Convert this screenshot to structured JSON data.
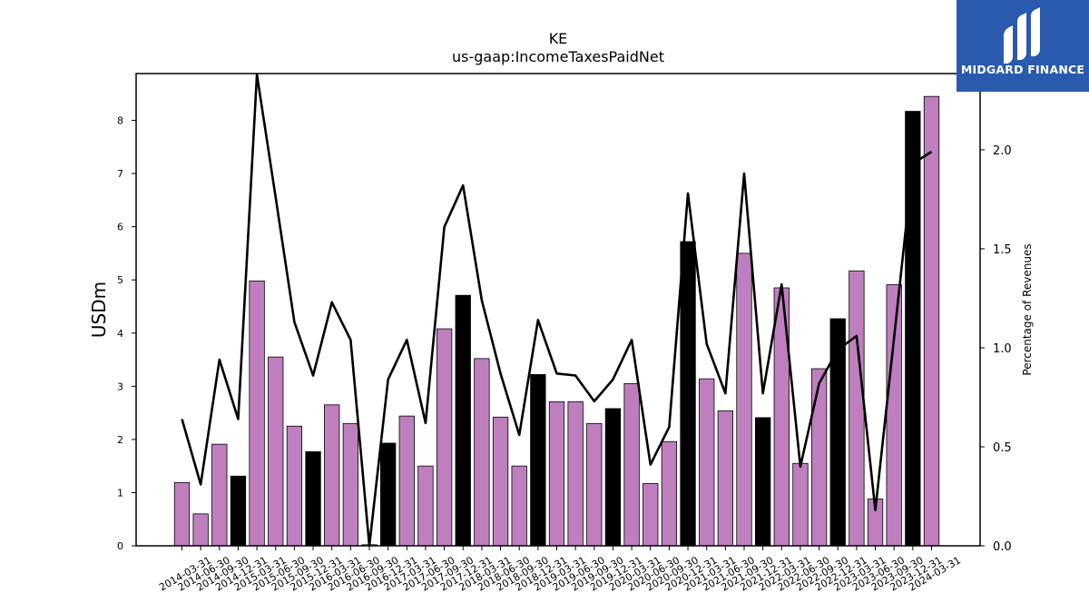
{
  "chart_data": {
    "type": "bar",
    "title": "KE",
    "subtitle": "us-gaap:IncomeTaxesPaidNet",
    "ylabel": "USDm",
    "y2label": "Percentage of Revenues",
    "ylim": [
      0,
      8.88
    ],
    "y2lim": [
      0,
      2.385
    ],
    "yticks": [
      0,
      1,
      2,
      3,
      4,
      5,
      6,
      7,
      8
    ],
    "y2ticks": [
      "0.0",
      "0.5",
      "1.0",
      "1.5",
      "2.0"
    ],
    "colors": {
      "quarter": "#bf7fbf",
      "q4": "#000000",
      "line": "#000000",
      "edge": "#000000"
    },
    "categories": [
      "2014-03-31",
      "2014-06-30",
      "2014-09-30",
      "2014-12-31",
      "2015-03-31",
      "2015-06-30",
      "2015-09-30",
      "2015-12-31",
      "2016-03-31",
      "2016-06-30",
      "2016-09-30",
      "2016-12-31",
      "2017-03-31",
      "2017-06-30",
      "2017-09-30",
      "2017-12-31",
      "2018-03-31",
      "2018-06-30",
      "2018-09-30",
      "2018-12-31",
      "2019-03-31",
      "2019-06-30",
      "2019-09-30",
      "2019-12-31",
      "2020-03-31",
      "2020-06-30",
      "2020-09-30",
      "2020-12-31",
      "2021-03-31",
      "2021-06-30",
      "2021-09-30",
      "2021-12-31",
      "2022-03-31",
      "2022-06-30",
      "2022-09-30",
      "2022-12-31",
      "2023-03-31",
      "2023-06-30",
      "2023-09-30",
      "2023-12-31",
      "2024-03-31"
    ],
    "series": [
      {
        "kind": "bar",
        "values": [
          1.19,
          0.6,
          1.91,
          1.31,
          4.98,
          3.55,
          2.25,
          1.77,
          2.65,
          2.3,
          0.02,
          1.93,
          2.44,
          1.5,
          4.08,
          4.71,
          3.52,
          2.42,
          1.5,
          3.22,
          2.71,
          2.71,
          2.3,
          2.58,
          3.05,
          1.17,
          1.96,
          5.72,
          3.14,
          2.54,
          5.5,
          2.41,
          4.85,
          1.55,
          3.33,
          4.27,
          5.17,
          0.88,
          4.91,
          8.17,
          8.45
        ]
      },
      {
        "kind": "line",
        "axis": "right",
        "values": [
          0.64,
          0.31,
          0.94,
          0.64,
          2.38,
          1.76,
          1.13,
          0.86,
          1.23,
          1.04,
          0.0,
          0.84,
          1.04,
          0.62,
          1.61,
          1.82,
          1.24,
          0.87,
          0.56,
          1.14,
          0.87,
          0.86,
          0.73,
          0.84,
          1.04,
          0.41,
          0.6,
          1.78,
          1.02,
          0.77,
          1.88,
          0.77,
          1.32,
          0.4,
          0.82,
          0.99,
          1.06,
          0.18,
          1.05,
          1.93,
          1.99
        ]
      }
    ]
  },
  "logo": {
    "text": "MIDGARD FINANCE",
    "background": "#2a5aad"
  }
}
